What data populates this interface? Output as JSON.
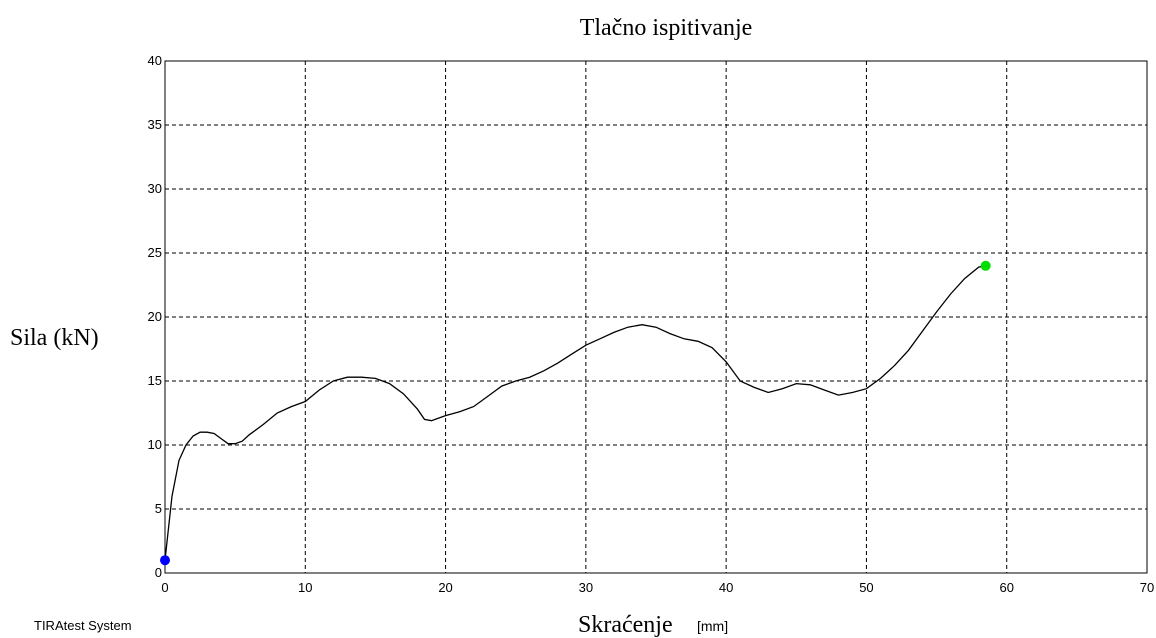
{
  "footer": "TIRAtest System",
  "chart_data": {
    "type": "line",
    "title": "Tlačno ispitivanje",
    "xlabel": "Skraćenje",
    "xunit": "[mm]",
    "ylabel": "Sila (kN)",
    "xlim": [
      0,
      70
    ],
    "ylim": [
      0,
      40
    ],
    "xticks": [
      0,
      10,
      20,
      30,
      40,
      50,
      60,
      70
    ],
    "yticks": [
      0,
      5,
      10,
      15,
      20,
      25,
      30,
      35,
      40
    ],
    "grid": true,
    "series": [
      {
        "color": "#000000",
        "x": [
          0,
          0.2,
          0.5,
          1,
          1.5,
          2,
          2.5,
          3,
          3.5,
          4,
          4.5,
          5,
          5.5,
          6,
          7,
          8,
          9,
          10,
          11,
          12,
          13,
          14,
          15,
          16,
          17,
          18,
          18.5,
          19,
          19.5,
          20,
          21,
          22,
          23,
          24,
          25,
          26,
          27,
          28,
          29,
          30,
          31,
          32,
          33,
          34,
          35,
          36,
          37,
          38,
          39,
          40,
          41,
          42,
          43,
          44,
          45,
          46,
          47,
          48,
          49,
          50,
          51,
          52,
          53,
          54,
          55,
          56,
          57,
          58,
          58.5
        ],
        "y": [
          1,
          3,
          6,
          8.8,
          10,
          10.7,
          11,
          11,
          10.9,
          10.5,
          10.1,
          10.1,
          10.3,
          10.8,
          11.6,
          12.5,
          13,
          13.4,
          14.3,
          15,
          15.3,
          15.3,
          15.2,
          14.8,
          14,
          12.8,
          12,
          11.9,
          12.1,
          12.3,
          12.6,
          13,
          13.8,
          14.6,
          15,
          15.3,
          15.8,
          16.4,
          17.1,
          17.8,
          18.3,
          18.8,
          19.2,
          19.4,
          19.2,
          18.7,
          18.3,
          18.1,
          17.6,
          16.5,
          15,
          14.5,
          14.1,
          14.4,
          14.8,
          14.7,
          14.3,
          13.9,
          14.1,
          14.4,
          15.2,
          16.2,
          17.4,
          18.9,
          20.4,
          21.8,
          23,
          23.9,
          24
        ]
      }
    ],
    "markers": [
      {
        "x": 0,
        "y": 1,
        "color": "#0000ff"
      },
      {
        "x": 58.5,
        "y": 24,
        "color": "#00dd00"
      }
    ]
  }
}
